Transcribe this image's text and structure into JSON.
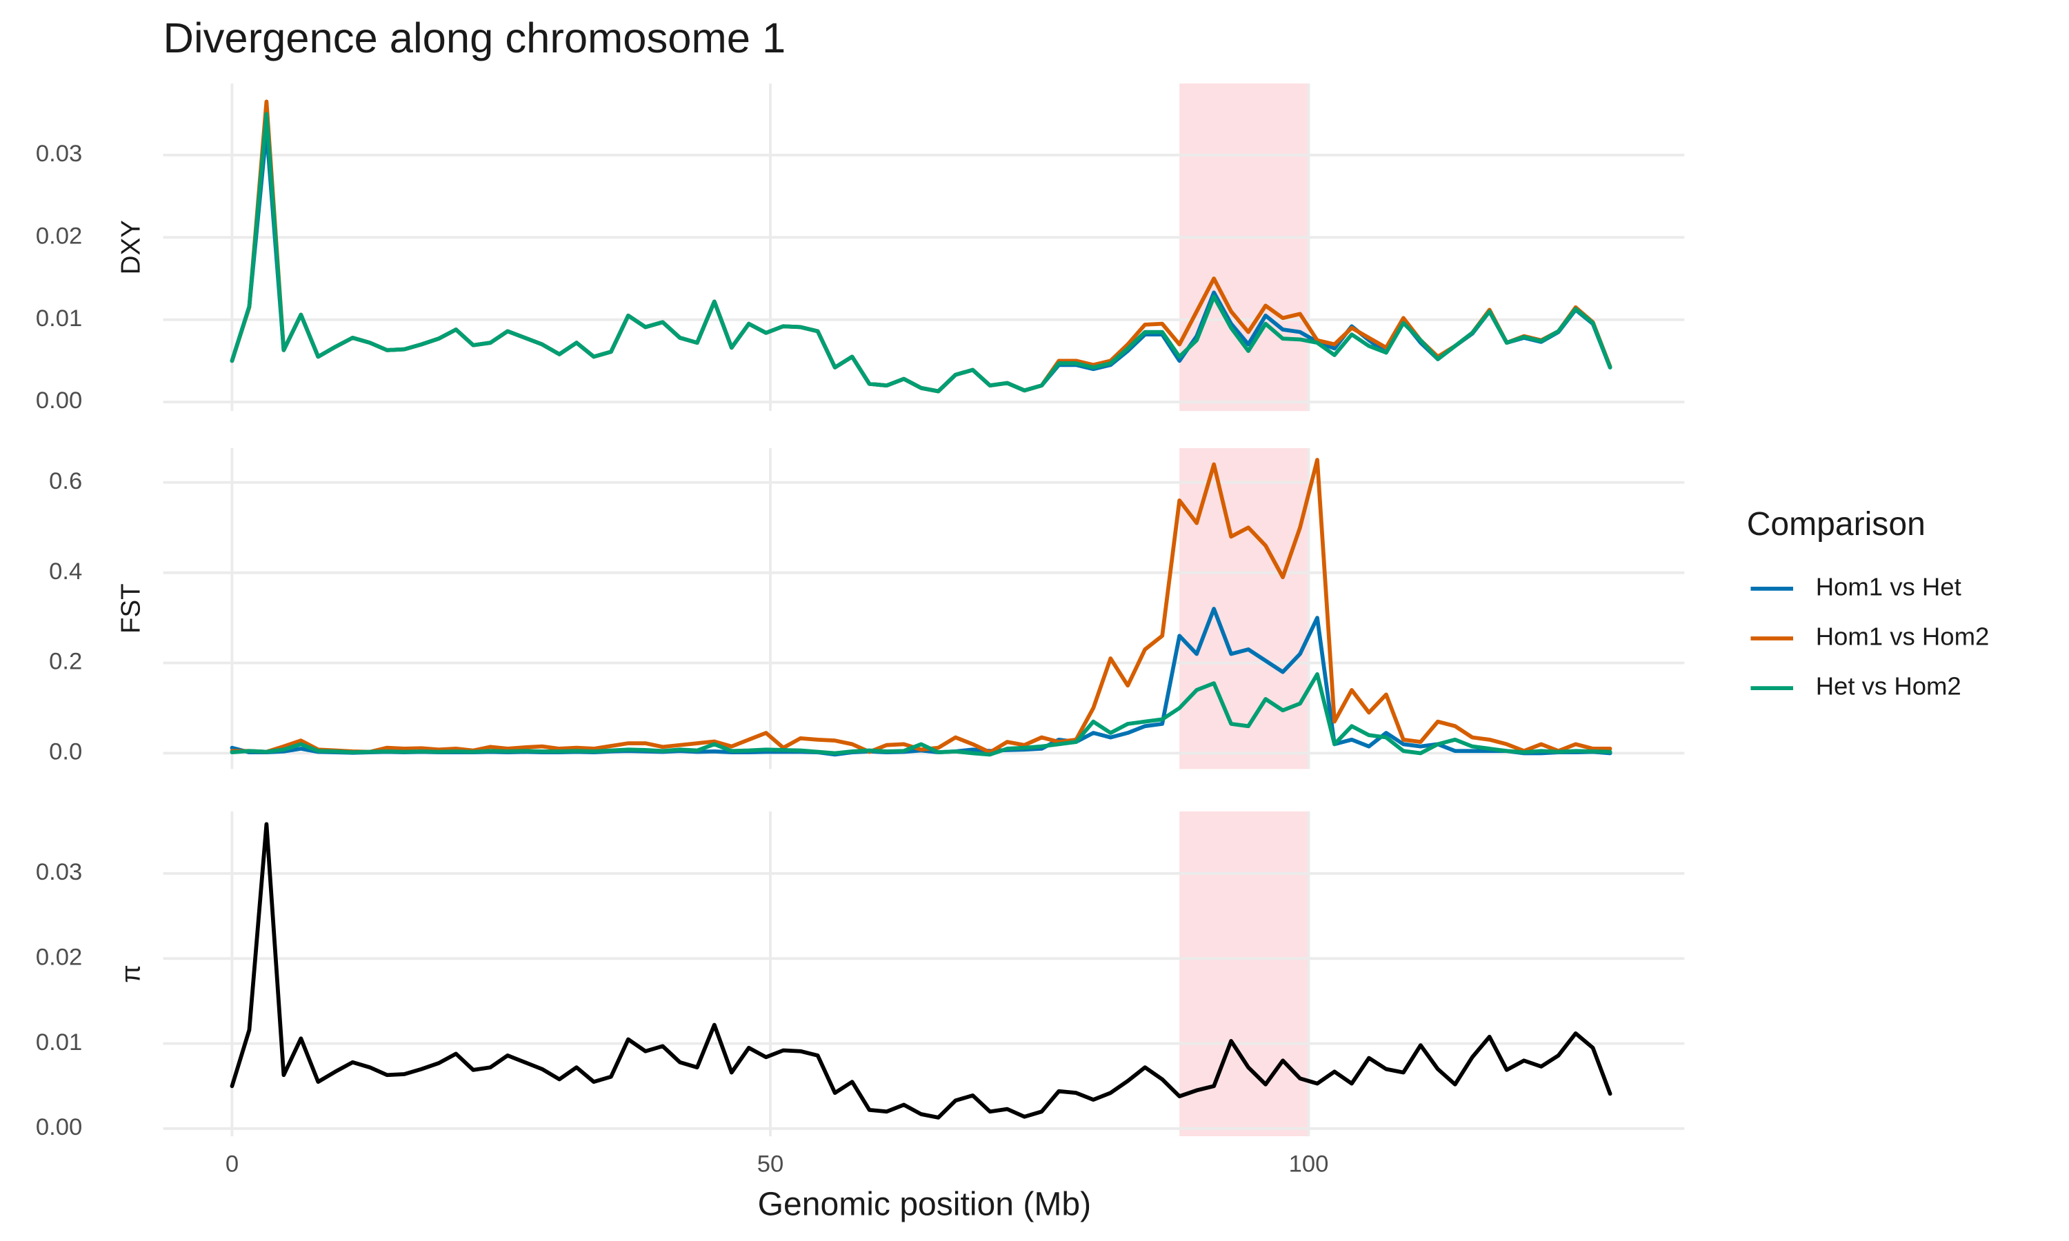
{
  "chart_data": {
    "type": "line",
    "title": "Divergence along chromosome 1",
    "x_label": "Genomic position (Mb)",
    "x": [
      0,
      1.6,
      3.2,
      4.8,
      6.4,
      8,
      9.6,
      11.2,
      12.8,
      14.4,
      16,
      17.6,
      19.2,
      20.8,
      22.4,
      24,
      25.6,
      27.2,
      28.8,
      30.4,
      32,
      33.6,
      35.2,
      36.8,
      38.4,
      40,
      41.6,
      43.2,
      44.8,
      46.4,
      48,
      49.6,
      51.2,
      52.8,
      54.4,
      56,
      57.6,
      59.2,
      60.8,
      62.4,
      64,
      65.6,
      67.2,
      68.8,
      70.4,
      72,
      73.6,
      75.2,
      76.8,
      78.4,
      80,
      81.6,
      83.2,
      84.8,
      86.4,
      88,
      89.6,
      91.2,
      92.8,
      94.4,
      96,
      97.6,
      99.2,
      100.8,
      102.4,
      104,
      105.6,
      107.2,
      108.8,
      110.4,
      112,
      113.6,
      115.2,
      116.8,
      118.4,
      120,
      121.6,
      123.2,
      124.8,
      126.4,
      128
    ],
    "xlim": [
      -6.4,
      134.9
    ],
    "xticks": [
      0,
      50,
      100
    ],
    "grid": true,
    "highlight": [
      88,
      100
    ],
    "highlight_color": "#fde0e3",
    "legend": {
      "title": "Comparison",
      "position": "right"
    },
    "panels": [
      {
        "y_label": "DXY",
        "ylim": [
          -0.0011,
          0.0387
        ],
        "yticks": [
          {
            "value": 0,
            "label": "0.00"
          },
          0.01,
          0.02,
          0.03
        ],
        "series": [
          {
            "name": "Hom1 vs Het",
            "color": "#0072B2",
            "values": [
              0.005,
              0.0116,
              0.033,
              0.0063,
              0.0106,
              0.0055,
              0.0067,
              0.0078,
              0.0072,
              0.0063,
              0.0064,
              0.007,
              0.0077,
              0.0088,
              0.0069,
              0.0072,
              0.0086,
              0.0078,
              0.007,
              0.0058,
              0.0072,
              0.0055,
              0.0061,
              0.0105,
              0.0091,
              0.0097,
              0.0078,
              0.0072,
              0.0122,
              0.0066,
              0.0095,
              0.0084,
              0.0092,
              0.0091,
              0.0086,
              0.0042,
              0.0055,
              0.0022,
              0.002,
              0.0028,
              0.0017,
              0.0013,
              0.0033,
              0.0039,
              0.002,
              0.0023,
              0.0014,
              0.002,
              0.0045,
              0.0045,
              0.004,
              0.0045,
              0.0062,
              0.0082,
              0.0082,
              0.005,
              0.008,
              0.0133,
              0.0095,
              0.007,
              0.0105,
              0.0088,
              0.0085,
              0.0073,
              0.0065,
              0.0092,
              0.0075,
              0.006,
              0.0098,
              0.0072,
              0.0052,
              0.0068,
              0.0083,
              0.011,
              0.0072,
              0.0078,
              0.0073,
              0.0085,
              0.0112,
              0.0095,
              0.0042
            ]
          },
          {
            "name": "Hom1 vs Hom2",
            "color": "#D55E00",
            "values": [
              0.005,
              0.0115,
              0.0365,
              0.0063,
              0.0106,
              0.0055,
              0.0067,
              0.0078,
              0.0072,
              0.0063,
              0.0064,
              0.007,
              0.0077,
              0.0088,
              0.0069,
              0.0072,
              0.0086,
              0.0078,
              0.007,
              0.0058,
              0.0072,
              0.0055,
              0.0061,
              0.0105,
              0.0091,
              0.0097,
              0.0078,
              0.0072,
              0.0122,
              0.0066,
              0.0095,
              0.0084,
              0.0092,
              0.0091,
              0.0086,
              0.0042,
              0.0055,
              0.0022,
              0.002,
              0.0028,
              0.0017,
              0.0013,
              0.0033,
              0.0039,
              0.002,
              0.0023,
              0.0014,
              0.002,
              0.005,
              0.005,
              0.0045,
              0.005,
              0.007,
              0.0094,
              0.0095,
              0.007,
              0.011,
              0.015,
              0.011,
              0.0085,
              0.0117,
              0.0102,
              0.0107,
              0.0075,
              0.007,
              0.009,
              0.0078,
              0.0066,
              0.0102,
              0.0075,
              0.0055,
              0.0068,
              0.0084,
              0.0112,
              0.0072,
              0.008,
              0.0075,
              0.0086,
              0.0115,
              0.0097,
              0.0043
            ]
          },
          {
            "name": "Het vs Hom2",
            "color": "#009E73",
            "values": [
              0.005,
              0.0116,
              0.035,
              0.0063,
              0.0106,
              0.0055,
              0.0067,
              0.0078,
              0.0072,
              0.0063,
              0.0064,
              0.007,
              0.0077,
              0.0088,
              0.0069,
              0.0072,
              0.0086,
              0.0078,
              0.007,
              0.0058,
              0.0072,
              0.0055,
              0.0061,
              0.0105,
              0.0091,
              0.0097,
              0.0078,
              0.0072,
              0.0122,
              0.0066,
              0.0095,
              0.0084,
              0.0092,
              0.0091,
              0.0086,
              0.0042,
              0.0055,
              0.0022,
              0.002,
              0.0028,
              0.0017,
              0.0013,
              0.0033,
              0.0039,
              0.002,
              0.0023,
              0.0014,
              0.002,
              0.0047,
              0.0047,
              0.0042,
              0.0047,
              0.0065,
              0.0085,
              0.0085,
              0.0055,
              0.0075,
              0.0128,
              0.009,
              0.0062,
              0.0095,
              0.0077,
              0.0076,
              0.0072,
              0.0057,
              0.0082,
              0.0068,
              0.006,
              0.0096,
              0.0075,
              0.0052,
              0.0068,
              0.0084,
              0.011,
              0.0072,
              0.0079,
              0.0074,
              0.0086,
              0.0113,
              0.0096,
              0.0042
            ]
          }
        ]
      },
      {
        "y_label": "FST",
        "ylim": [
          -0.035,
          0.676
        ],
        "yticks": [
          {
            "value": 0,
            "label": "0.0"
          },
          0.2,
          0.4,
          0.6
        ],
        "series": [
          {
            "name": "Hom1 vs Het",
            "color": "#0072B2",
            "values": [
              0.012,
              0.002,
              0.002,
              0.004,
              0.01,
              0.003,
              0.002,
              0.001,
              0.002,
              0.003,
              0.002,
              0.003,
              0.002,
              0.002,
              0.002,
              0.003,
              0.002,
              0.003,
              0.002,
              0.002,
              0.003,
              0.002,
              0.004,
              0.005,
              0.004,
              0.003,
              0.005,
              0.003,
              0.004,
              0.002,
              0.002,
              0.003,
              0.003,
              0.003,
              0.002,
              -0.003,
              0.002,
              0.004,
              0.002,
              0.003,
              0.006,
              0.002,
              0.004,
              0.008,
              0.005,
              0.007,
              0.008,
              0.01,
              0.03,
              0.025,
              0.045,
              0.035,
              0.045,
              0.06,
              0.065,
              0.26,
              0.22,
              0.32,
              0.22,
              0.23,
              0.205,
              0.18,
              0.22,
              0.3,
              0.02,
              0.03,
              0.015,
              0.045,
              0.02,
              0.015,
              0.02,
              0.005,
              0.005,
              0.005,
              0.005,
              0.0,
              0.0,
              0.002,
              0.002,
              0.003,
              0.0
            ]
          },
          {
            "name": "Hom1 vs Hom2",
            "color": "#D55E00",
            "values": [
              0.005,
              0.005,
              0.003,
              0.015,
              0.028,
              0.008,
              0.006,
              0.004,
              0.003,
              0.012,
              0.01,
              0.011,
              0.008,
              0.01,
              0.006,
              0.014,
              0.01,
              0.013,
              0.015,
              0.01,
              0.012,
              0.01,
              0.016,
              0.022,
              0.022,
              0.014,
              0.018,
              0.022,
              0.026,
              0.015,
              0.03,
              0.045,
              0.012,
              0.033,
              0.03,
              0.028,
              0.02,
              0.003,
              0.018,
              0.02,
              0.008,
              0.012,
              0.035,
              0.02,
              0.002,
              0.025,
              0.018,
              0.035,
              0.025,
              0.03,
              0.1,
              0.21,
              0.15,
              0.23,
              0.26,
              0.56,
              0.51,
              0.64,
              0.48,
              0.5,
              0.46,
              0.39,
              0.5,
              0.65,
              0.07,
              0.14,
              0.09,
              0.13,
              0.03,
              0.025,
              0.07,
              0.06,
              0.035,
              0.03,
              0.02,
              0.005,
              0.02,
              0.005,
              0.02,
              0.01,
              0.01
            ]
          },
          {
            "name": "Het vs Hom2",
            "color": "#009E73",
            "values": [
              0.002,
              0.005,
              0.003,
              0.008,
              0.02,
              0.005,
              0.004,
              0.002,
              0.003,
              0.004,
              0.003,
              0.004,
              0.003,
              0.004,
              0.003,
              0.005,
              0.004,
              0.005,
              0.004,
              0.004,
              0.005,
              0.004,
              0.006,
              0.008,
              0.007,
              0.005,
              0.008,
              0.006,
              0.02,
              0.005,
              0.006,
              0.008,
              0.007,
              0.006,
              0.003,
              0.0,
              0.004,
              0.006,
              0.004,
              0.005,
              0.02,
              0.002,
              0.004,
              0.0,
              -0.003,
              0.01,
              0.012,
              0.015,
              0.02,
              0.025,
              0.07,
              0.045,
              0.065,
              0.07,
              0.075,
              0.1,
              0.14,
              0.155,
              0.065,
              0.06,
              0.12,
              0.095,
              0.11,
              0.175,
              0.02,
              0.06,
              0.04,
              0.035,
              0.005,
              0.0,
              0.02,
              0.03,
              0.015,
              0.01,
              0.005,
              0.002,
              0.005,
              0.003,
              0.005,
              0.004,
              0.003
            ]
          }
        ]
      },
      {
        "y_label": "π",
        "ylim": [
          -0.0009,
          0.0373
        ],
        "yticks": [
          {
            "value": 0,
            "label": "0.00"
          },
          0.01,
          0.02,
          0.03
        ],
        "series": [
          {
            "color": "#000000",
            "values": [
              0.005,
              0.0116,
              0.0358,
              0.0063,
              0.0106,
              0.0055,
              0.0067,
              0.0078,
              0.0072,
              0.0063,
              0.0064,
              0.007,
              0.0077,
              0.0088,
              0.0069,
              0.0072,
              0.0086,
              0.0078,
              0.007,
              0.0058,
              0.0072,
              0.0055,
              0.0061,
              0.0105,
              0.0091,
              0.0097,
              0.0078,
              0.0072,
              0.0122,
              0.0066,
              0.0095,
              0.0084,
              0.0092,
              0.0091,
              0.0086,
              0.0042,
              0.0055,
              0.0022,
              0.002,
              0.0028,
              0.0017,
              0.0013,
              0.0033,
              0.0039,
              0.002,
              0.0023,
              0.0014,
              0.002,
              0.0044,
              0.0042,
              0.0034,
              0.0042,
              0.0056,
              0.0072,
              0.0058,
              0.0038,
              0.0045,
              0.005,
              0.0103,
              0.0072,
              0.0052,
              0.008,
              0.0059,
              0.0053,
              0.0067,
              0.0053,
              0.0083,
              0.007,
              0.0066,
              0.0098,
              0.007,
              0.0052,
              0.0084,
              0.0108,
              0.0069,
              0.008,
              0.0073,
              0.0086,
              0.0112,
              0.0095,
              0.0041
            ]
          }
        ]
      }
    ]
  }
}
